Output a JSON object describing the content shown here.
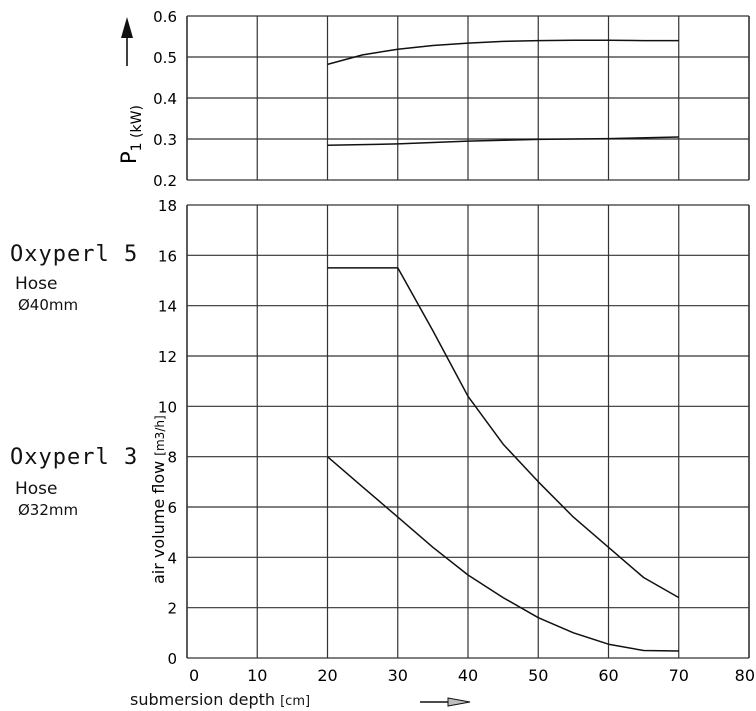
{
  "chart_data": [
    {
      "type": "line",
      "x_ticks": [
        0,
        10,
        20,
        30,
        40,
        50,
        60,
        70,
        80
      ],
      "y_ticks": [
        0.2,
        0.3,
        0.4,
        0.5,
        0.6
      ],
      "ylim": [
        0.2,
        0.6
      ],
      "xlim": [
        0,
        80
      ],
      "ylabel": "P",
      "ylabel_sub": "1 (kW)",
      "grid": true,
      "series": [
        {
          "x": [
            20,
            25,
            30,
            35,
            40,
            45,
            50,
            55,
            60,
            65,
            70
          ],
          "y": [
            0.482,
            0.505,
            0.519,
            0.528,
            0.534,
            0.538,
            0.54,
            0.541,
            0.541,
            0.54,
            0.54
          ]
        },
        {
          "x": [
            20,
            30,
            40,
            50,
            60,
            70
          ],
          "y": [
            0.285,
            0.288,
            0.295,
            0.299,
            0.301,
            0.305
          ]
        }
      ]
    },
    {
      "type": "line",
      "x_ticks": [
        0,
        10,
        20,
        30,
        40,
        50,
        60,
        70,
        80
      ],
      "y_ticks": [
        0,
        2,
        4,
        6,
        8,
        10,
        12,
        14,
        16,
        18
      ],
      "ylim": [
        0,
        18
      ],
      "xlim": [
        0,
        80
      ],
      "ylabel": "air volume flow",
      "ylabel_unit": "[m3/h]",
      "xlabel": "submersion depth",
      "xlabel_unit": "[cm]",
      "grid": true,
      "series": [
        {
          "name": "Oxyperl 5",
          "x": [
            20,
            30,
            35,
            40,
            45,
            50,
            55,
            60,
            65,
            70
          ],
          "y": [
            15.5,
            15.5,
            13.0,
            10.4,
            8.5,
            7.0,
            5.6,
            4.4,
            3.2,
            2.4
          ]
        },
        {
          "name": "Oxyperl 3",
          "x": [
            20,
            25,
            30,
            35,
            40,
            45,
            50,
            55,
            60,
            65,
            70
          ],
          "y": [
            8.0,
            6.8,
            5.6,
            4.4,
            3.3,
            2.4,
            1.6,
            1.0,
            0.55,
            0.3,
            0.28
          ]
        }
      ]
    }
  ],
  "legend": {
    "oxy5_name": "Oxyperl 5",
    "oxy5_hose": "Hose",
    "oxy5_diameter": "Ø40mm",
    "oxy3_name": "Oxyperl 3",
    "oxy3_hose": "Hose",
    "oxy3_diameter": "Ø32mm"
  }
}
